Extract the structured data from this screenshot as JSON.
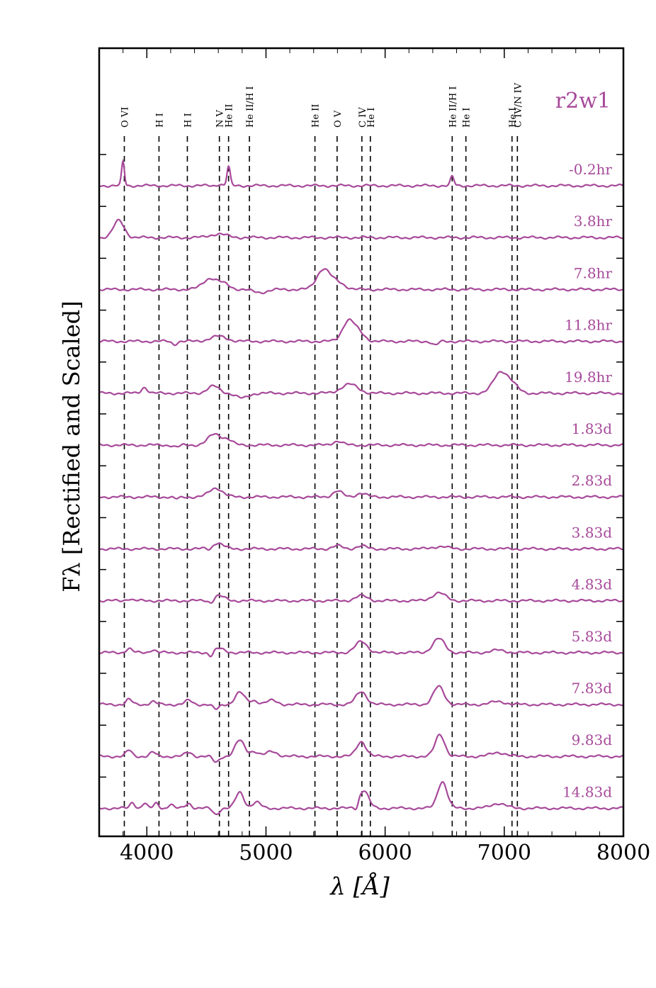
{
  "chart_data": {
    "type": "line",
    "title": "r2w1",
    "xlabel": "λ [Å]",
    "ylabel": "Fλ [Rectified and Scaled]",
    "xlim": [
      3600,
      8000
    ],
    "x_ticks": [
      "4000",
      "5000",
      "6000",
      "7000",
      "8000"
    ],
    "grid": false,
    "color": "#a7499a",
    "lines": [
      {
        "label": "O VI",
        "x": 3811
      },
      {
        "label": "H I",
        "x": 4102
      },
      {
        "label": "H I",
        "x": 4340
      },
      {
        "label": "N V",
        "x": 4609
      },
      {
        "label": "He II",
        "x": 4686
      },
      {
        "label": "He II/H I",
        "x": 4861
      },
      {
        "label": "He II",
        "x": 5411
      },
      {
        "label": "O V",
        "x": 5597
      },
      {
        "label": "C IV",
        "x": 5805
      },
      {
        "label": "He I",
        "x": 5876
      },
      {
        "label": "He II/H I",
        "x": 6563
      },
      {
        "label": "He I",
        "x": 6678
      },
      {
        "label": "He I",
        "x": 7065
      },
      {
        "label": "C IV/N IV",
        "x": 7110
      }
    ],
    "series": [
      {
        "name": "-0.2hr",
        "features": [
          [
            3800,
            1.2,
            12
          ],
          [
            4686,
            0.95,
            14
          ],
          [
            6563,
            0.45,
            15
          ],
          [
            4610,
            0.08,
            20
          ]
        ]
      },
      {
        "name": "3.8hr",
        "features": [
          [
            3765,
            0.85,
            45
          ],
          [
            4600,
            0.18,
            70
          ]
        ]
      },
      {
        "name": "7.8hr",
        "features": [
          [
            4530,
            0.55,
            60
          ],
          [
            4650,
            0.25,
            50
          ],
          [
            5480,
            1.0,
            55
          ],
          [
            5600,
            0.35,
            60
          ],
          [
            4950,
            -0.15,
            60
          ]
        ]
      },
      {
        "name": "11.8hr",
        "features": [
          [
            4600,
            0.25,
            70
          ],
          [
            5690,
            1.0,
            50
          ],
          [
            5780,
            0.4,
            50
          ],
          [
            4230,
            -0.15,
            20
          ],
          [
            6420,
            -0.2,
            25
          ]
        ]
      },
      {
        "name": "19.8hr",
        "features": [
          [
            3980,
            0.3,
            25
          ],
          [
            4560,
            0.35,
            50
          ],
          [
            5700,
            0.45,
            70
          ],
          [
            6970,
            1.05,
            60
          ],
          [
            7070,
            0.35,
            50
          ],
          [
            4800,
            -0.25,
            50
          ]
        ]
      },
      {
        "name": "1.83d",
        "features": [
          [
            4570,
            0.55,
            55
          ],
          [
            4680,
            0.25,
            40
          ],
          [
            5600,
            0.2,
            40
          ],
          [
            4250,
            -0.1,
            25
          ]
        ]
      },
      {
        "name": "2.83d",
        "features": [
          [
            4580,
            0.45,
            55
          ],
          [
            5600,
            0.3,
            40
          ],
          [
            5800,
            0.2,
            40
          ],
          [
            4250,
            -0.1,
            25
          ]
        ]
      },
      {
        "name": "3.83d",
        "features": [
          [
            4590,
            0.3,
            50
          ],
          [
            5600,
            0.15,
            40
          ],
          [
            5800,
            0.15,
            40
          ],
          [
            6460,
            0.12,
            60
          ],
          [
            4530,
            -0.15,
            20
          ]
        ]
      },
      {
        "name": "4.83d",
        "features": [
          [
            4600,
            0.25,
            50
          ],
          [
            5800,
            0.25,
            50
          ],
          [
            6450,
            0.4,
            55
          ],
          [
            4540,
            -0.2,
            20
          ],
          [
            3850,
            0.1,
            25
          ]
        ]
      },
      {
        "name": "5.83d",
        "features": [
          [
            3850,
            0.2,
            25
          ],
          [
            4050,
            0.15,
            25
          ],
          [
            4600,
            0.2,
            50
          ],
          [
            5800,
            0.55,
            50
          ],
          [
            6450,
            0.7,
            50
          ],
          [
            4540,
            -0.25,
            20
          ],
          [
            6950,
            0.12,
            60
          ]
        ]
      },
      {
        "name": "7.83d",
        "features": [
          [
            3850,
            0.25,
            25
          ],
          [
            4050,
            0.15,
            25
          ],
          [
            4350,
            0.2,
            30
          ],
          [
            4780,
            0.6,
            40
          ],
          [
            4900,
            0.2,
            35
          ],
          [
            5800,
            0.65,
            45
          ],
          [
            6450,
            0.9,
            45
          ],
          [
            4580,
            -0.25,
            25
          ],
          [
            5050,
            0.2,
            45
          ],
          [
            6950,
            0.15,
            60
          ]
        ]
      },
      {
        "name": "9.83d",
        "features": [
          [
            3850,
            0.3,
            25
          ],
          [
            4050,
            0.2,
            25
          ],
          [
            4350,
            0.2,
            30
          ],
          [
            4780,
            0.8,
            40
          ],
          [
            4900,
            0.25,
            35
          ],
          [
            5800,
            0.75,
            40
          ],
          [
            6460,
            1.1,
            40
          ],
          [
            4580,
            -0.3,
            25
          ],
          [
            5050,
            0.25,
            45
          ],
          [
            6950,
            0.2,
            60
          ]
        ]
      },
      {
        "name": "14.83d",
        "features": [
          [
            3880,
            0.3,
            20
          ],
          [
            3980,
            0.25,
            20
          ],
          [
            4080,
            0.25,
            20
          ],
          [
            4200,
            0.2,
            20
          ],
          [
            4350,
            0.25,
            25
          ],
          [
            4780,
            0.8,
            35
          ],
          [
            4920,
            0.3,
            35
          ],
          [
            5820,
            0.9,
            40
          ],
          [
            6480,
            1.35,
            40
          ],
          [
            4580,
            -0.3,
            25
          ],
          [
            6950,
            0.25,
            60
          ],
          [
            5760,
            -0.25,
            15
          ]
        ]
      }
    ]
  }
}
